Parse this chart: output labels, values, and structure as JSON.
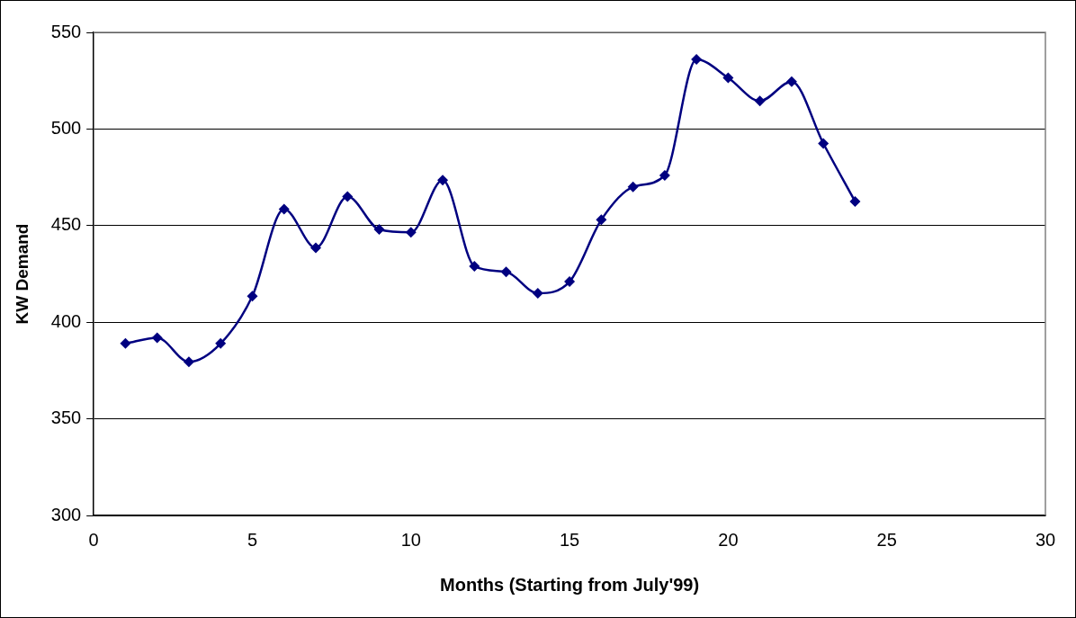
{
  "chart_data": {
    "type": "line",
    "xlabel": "Months (Starting from July'99)",
    "ylabel": "KW Demand",
    "x": [
      1,
      2,
      3,
      4,
      5,
      6,
      7,
      8,
      9,
      10,
      11,
      12,
      13,
      14,
      15,
      16,
      17,
      18,
      19,
      20,
      21,
      22,
      23,
      24
    ],
    "series": [
      {
        "color": "#000080",
        "values": [
          389,
          392,
          379.5,
          389,
          413.5,
          458.5,
          438.5,
          465,
          448,
          446.5,
          473.5,
          429,
          426,
          415,
          421,
          453,
          470,
          476,
          536,
          526.5,
          514.5,
          524.5,
          492.5,
          462.5
        ]
      }
    ],
    "xlim": [
      0,
      30
    ],
    "xticks": [
      0,
      5,
      10,
      15,
      20,
      25,
      30
    ],
    "ylim": [
      300,
      550
    ],
    "yticks": [
      300,
      350,
      400,
      450,
      500,
      550
    ],
    "grid": "y",
    "legend": false,
    "marker": "diamond",
    "line_style": "solid"
  }
}
